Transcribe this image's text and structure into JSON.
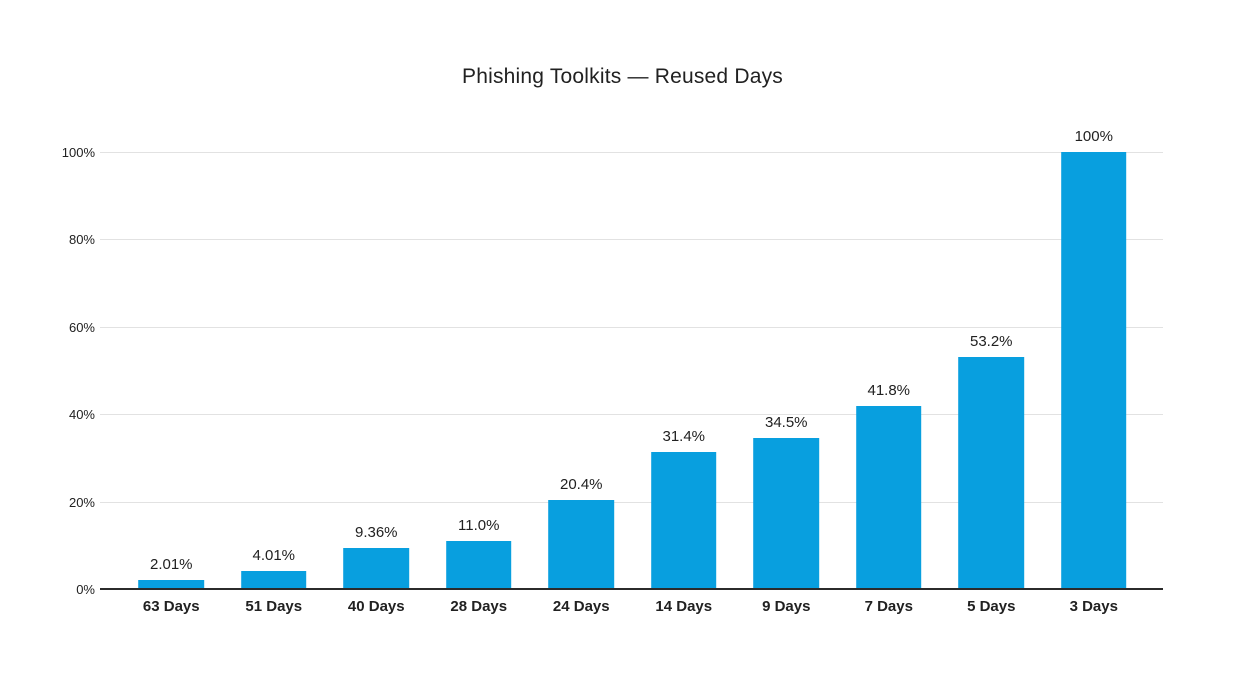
{
  "page": {
    "background_color": "#ffffff",
    "text_color": "#212121"
  },
  "chart_data": {
    "type": "bar",
    "title": "Phishing Toolkits — Reused Days",
    "categories": [
      "63 Days",
      "51 Days",
      "40 Days",
      "28 Days",
      "24 Days",
      "14 Days",
      "9 Days",
      "7 Days",
      "5 Days",
      "3 Days"
    ],
    "values": [
      2.01,
      4.01,
      9.36,
      11.0,
      20.4,
      31.4,
      34.5,
      41.8,
      53.2,
      100
    ],
    "value_labels": [
      "2.01%",
      "4.01%",
      "9.36%",
      "11.0%",
      "20.4%",
      "31.4%",
      "34.5%",
      "41.8%",
      "53.2%",
      "100%"
    ],
    "xlabel": "",
    "ylabel": "",
    "ylim": [
      0,
      100
    ],
    "y_ticks": [
      0,
      20,
      40,
      60,
      80,
      100
    ],
    "y_tick_labels": [
      "0%",
      "20%",
      "40%",
      "60%",
      "80%",
      "100%"
    ],
    "grid": true,
    "legend_position": "none",
    "bar_color": "#089fdf",
    "gridline_color": "#e2e2e2",
    "axis_line_color": "#2b2b2b"
  }
}
